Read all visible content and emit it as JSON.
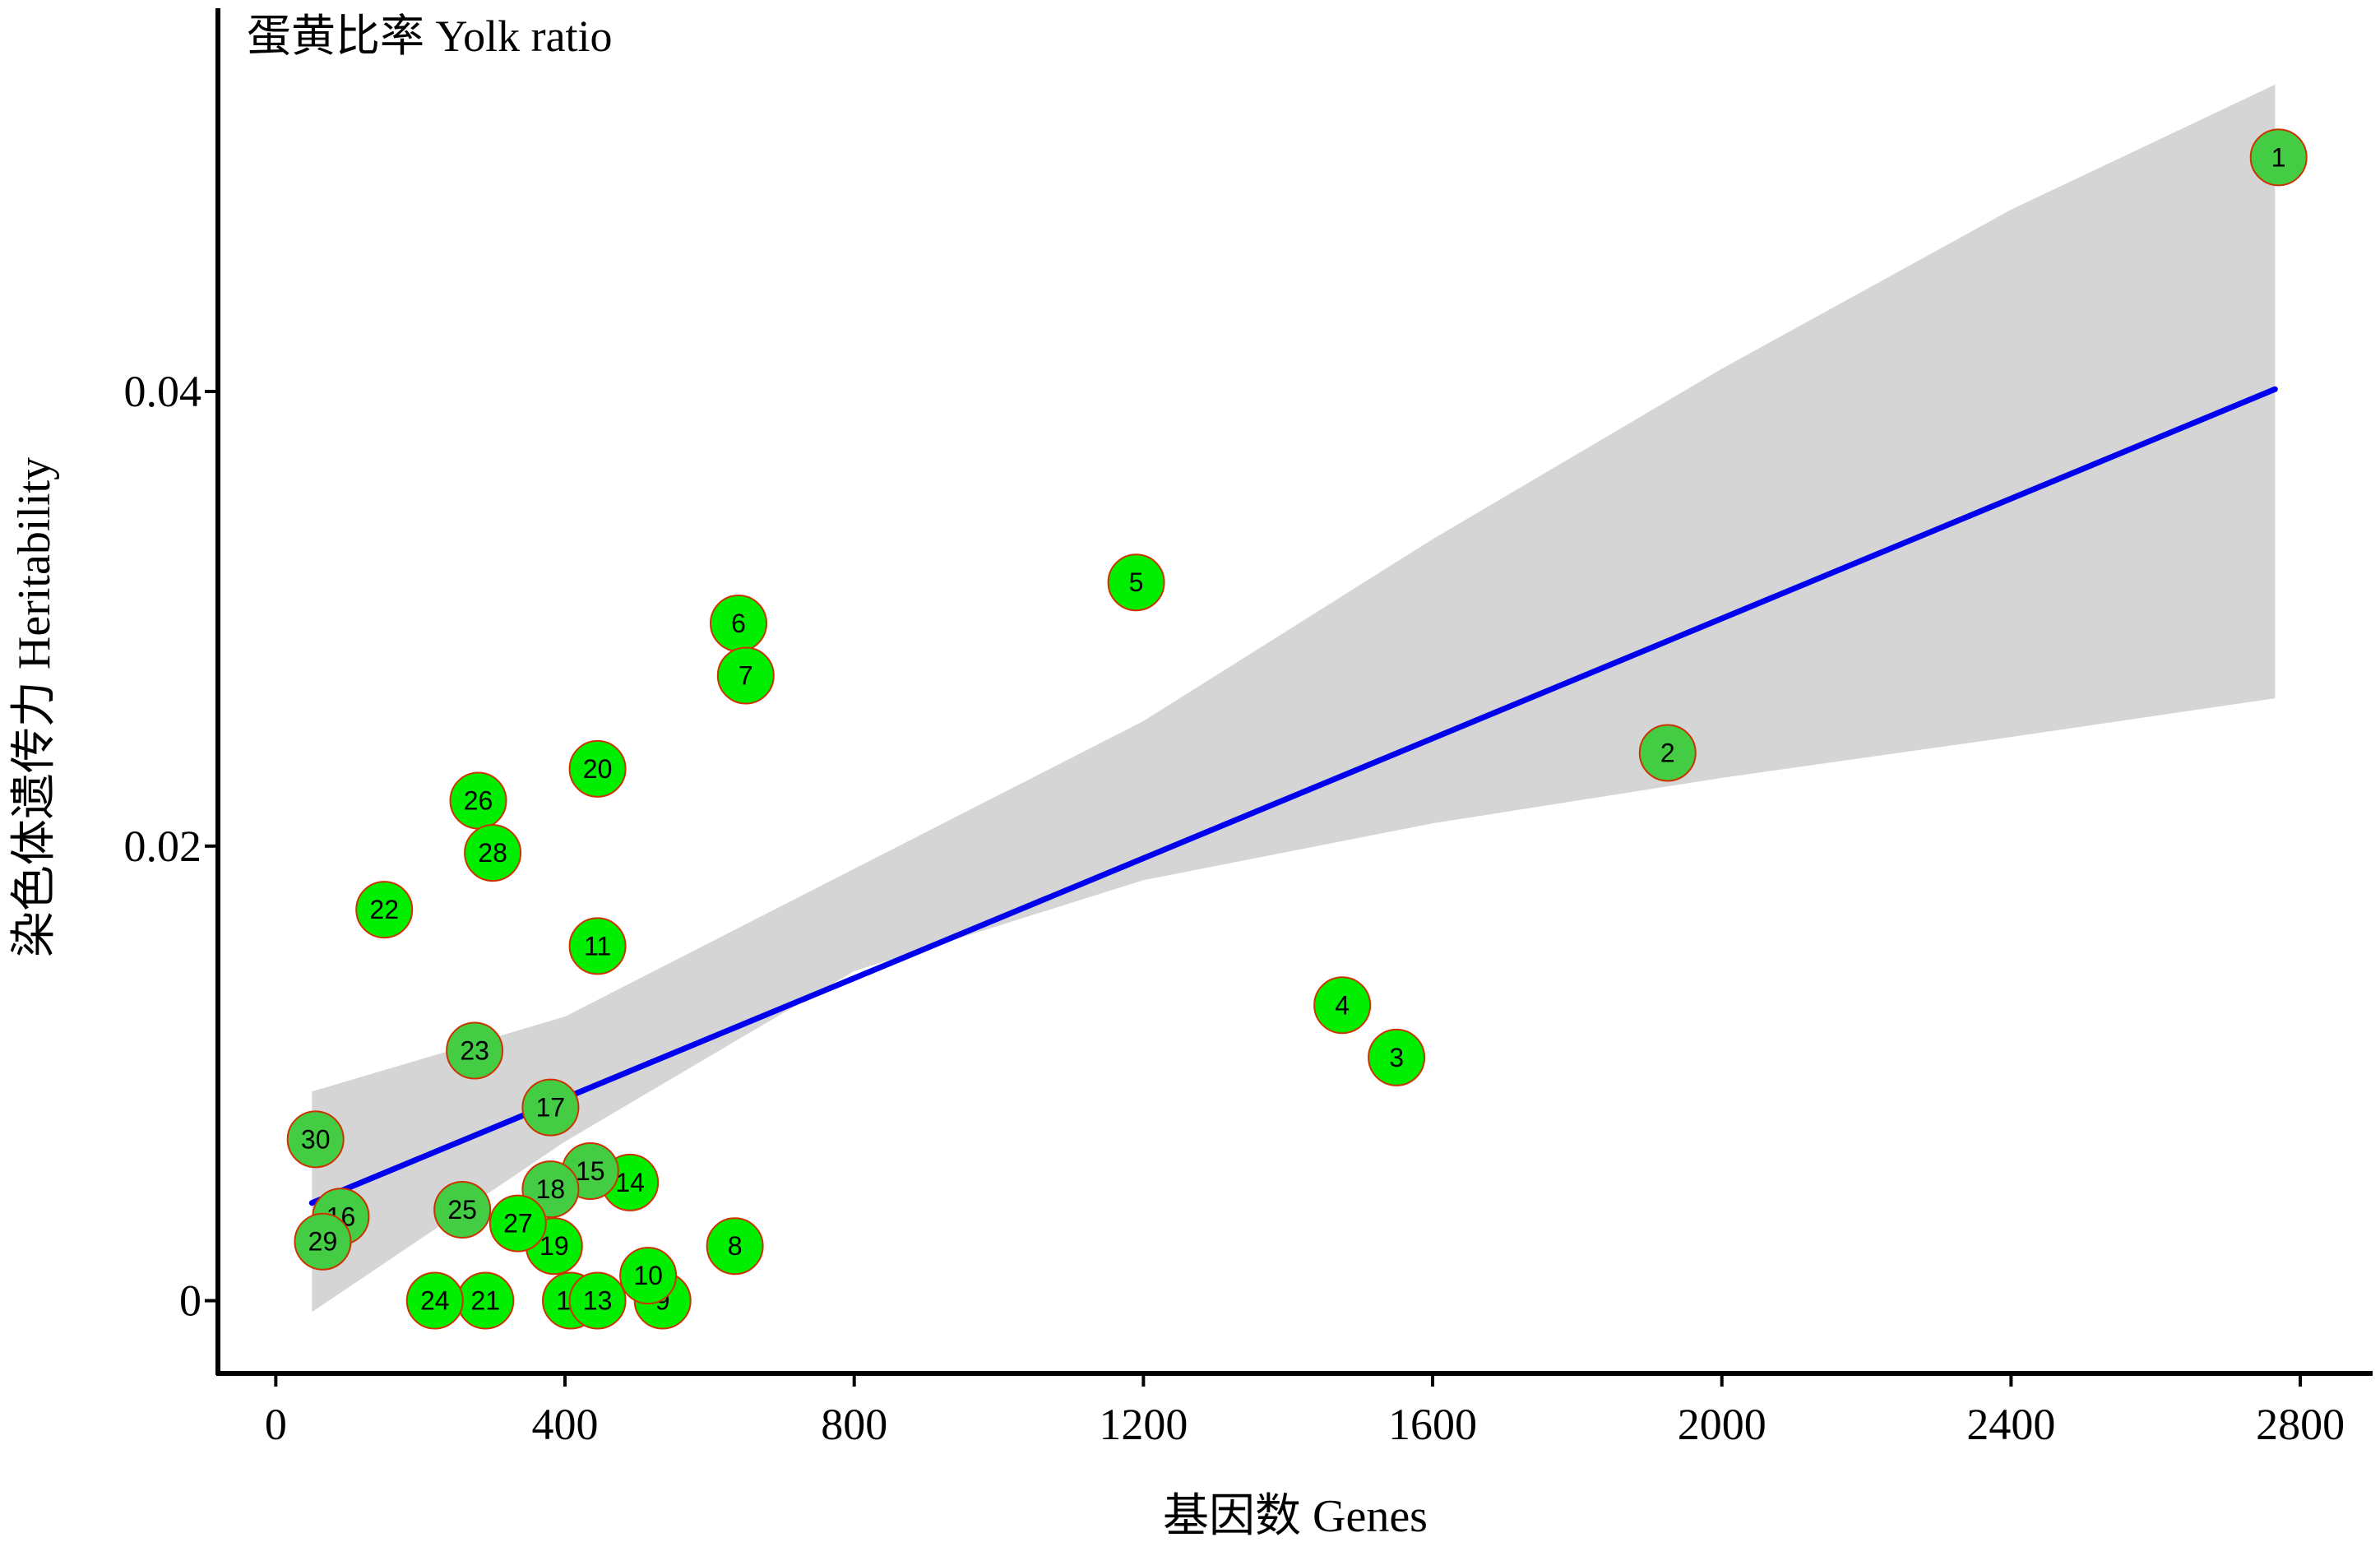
{
  "chart_data": {
    "type": "scatter",
    "title": "蛋黄比率 Yolk ratio",
    "xlabel": "基因数 Genes",
    "ylabel": "染色体遗传力 Heritability",
    "xlim": [
      -80,
      2900
    ],
    "ylim": [
      -0.0032,
      0.0565
    ],
    "x_ticks": [
      0,
      400,
      800,
      1200,
      1600,
      2000,
      2400,
      2800
    ],
    "x_tick_labels": [
      "0",
      "400",
      "800",
      "1200",
      "1600",
      "2000",
      "2400",
      "2800"
    ],
    "y_ticks": [
      0,
      0.02,
      0.04
    ],
    "y_tick_labels": [
      "0",
      "0.02",
      "0.04"
    ],
    "grid": false,
    "legend": "none",
    "colors": {
      "point_fill": "#00ee00",
      "point_fill_overlap": "#44cc44",
      "point_stroke": "#cc3300",
      "fit_line": "#0000ee",
      "confidence_band": "#d5d5d5",
      "axis": "#000000"
    },
    "fit": {
      "type": "linear",
      "x_range": [
        50,
        2765
      ],
      "y_at_start": 0.0043,
      "y_at_end": 0.0401
    },
    "confidence_band": [
      {
        "x": 50,
        "lower": -0.0005,
        "upper": 0.0092
      },
      {
        "x": 400,
        "lower": 0.007,
        "upper": 0.0125
      },
      {
        "x": 800,
        "lower": 0.0145,
        "upper": 0.019
      },
      {
        "x": 1200,
        "lower": 0.0185,
        "upper": 0.0255
      },
      {
        "x": 1600,
        "lower": 0.021,
        "upper": 0.0335
      },
      {
        "x": 2000,
        "lower": 0.023,
        "upper": 0.041
      },
      {
        "x": 2400,
        "lower": 0.0248,
        "upper": 0.048
      },
      {
        "x": 2765,
        "lower": 0.0265,
        "upper": 0.0535
      }
    ],
    "points": [
      {
        "label": "1",
        "x": 2770,
        "y": 0.0503,
        "overlap": true
      },
      {
        "label": "2",
        "x": 1925,
        "y": 0.0241,
        "overlap": true
      },
      {
        "label": "3",
        "x": 1550,
        "y": 0.0107,
        "overlap": false
      },
      {
        "label": "4",
        "x": 1475,
        "y": 0.013,
        "overlap": false
      },
      {
        "label": "5",
        "x": 1190,
        "y": 0.0316,
        "overlap": false
      },
      {
        "label": "6",
        "x": 640,
        "y": 0.0298,
        "overlap": false
      },
      {
        "label": "7",
        "x": 650,
        "y": 0.0275,
        "overlap": false
      },
      {
        "label": "8",
        "x": 635,
        "y": 0.0024,
        "overlap": false
      },
      {
        "label": "9",
        "x": 535,
        "y": 0.0,
        "overlap": false
      },
      {
        "label": "10",
        "x": 515,
        "y": 0.0011,
        "overlap": false
      },
      {
        "label": "11",
        "x": 445,
        "y": 0.0156,
        "overlap": false
      },
      {
        "label": "12",
        "x": 408,
        "y": 0.0,
        "overlap": false
      },
      {
        "label": "13",
        "x": 445,
        "y": 0.0,
        "overlap": false
      },
      {
        "label": "14",
        "x": 490,
        "y": 0.0052,
        "overlap": false
      },
      {
        "label": "15",
        "x": 435,
        "y": 0.0057,
        "overlap": true
      },
      {
        "label": "16",
        "x": 90,
        "y": 0.0037,
        "overlap": true
      },
      {
        "label": "17",
        "x": 380,
        "y": 0.0085,
        "overlap": true
      },
      {
        "label": "18",
        "x": 380,
        "y": 0.0049,
        "overlap": true
      },
      {
        "label": "19",
        "x": 385,
        "y": 0.0024,
        "overlap": false
      },
      {
        "label": "20",
        "x": 445,
        "y": 0.0234,
        "overlap": false
      },
      {
        "label": "21",
        "x": 290,
        "y": 0.0,
        "overlap": false
      },
      {
        "label": "22",
        "x": 150,
        "y": 0.0172,
        "overlap": false
      },
      {
        "label": "23",
        "x": 275,
        "y": 0.011,
        "overlap": true
      },
      {
        "label": "24",
        "x": 220,
        "y": 0.0,
        "overlap": false
      },
      {
        "label": "25",
        "x": 258,
        "y": 0.004,
        "overlap": true
      },
      {
        "label": "26",
        "x": 280,
        "y": 0.022,
        "overlap": false
      },
      {
        "label": "27",
        "x": 335,
        "y": 0.0034,
        "overlap": false
      },
      {
        "label": "28",
        "x": 300,
        "y": 0.0197,
        "overlap": false
      },
      {
        "label": "29",
        "x": 65,
        "y": 0.0026,
        "overlap": true
      },
      {
        "label": "30",
        "x": 55,
        "y": 0.0071,
        "overlap": true
      }
    ]
  }
}
